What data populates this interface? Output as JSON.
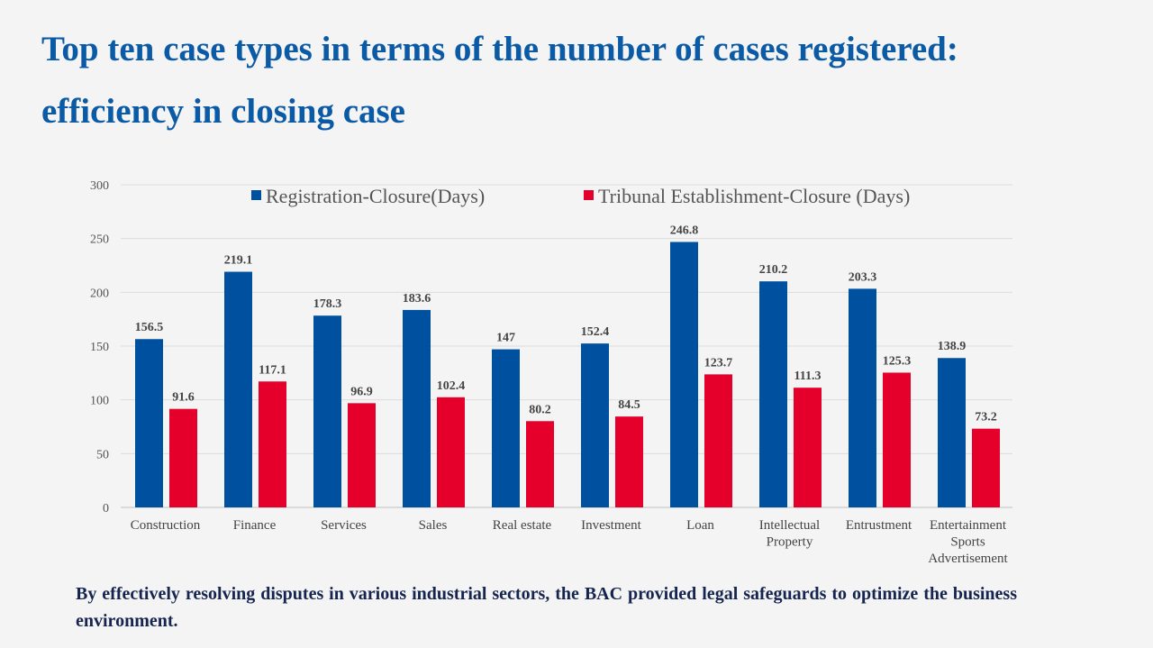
{
  "header": {
    "title_line1": "Top ten case types in terms of the number of cases registered:",
    "title_line2": "efficiency in closing case"
  },
  "footer": {
    "text": "By effectively resolving disputes in various industrial sectors, the BAC provided legal safeguards to optimize the business environment."
  },
  "chart_data": {
    "type": "bar",
    "title": "",
    "xlabel": "",
    "ylabel": "",
    "ylim": [
      0,
      300
    ],
    "yticks": [
      0,
      50,
      100,
      150,
      200,
      250,
      300
    ],
    "grid": true,
    "legend_position": "top",
    "categories": [
      [
        "Construction"
      ],
      [
        "Finance"
      ],
      [
        "Services"
      ],
      [
        "Sales"
      ],
      [
        "Real estate"
      ],
      [
        "Investment"
      ],
      [
        "Loan"
      ],
      [
        "Intellectual",
        "Property"
      ],
      [
        "Entrustment"
      ],
      [
        "Entertainment",
        "Sports",
        "Advertisement"
      ]
    ],
    "series": [
      {
        "name": "Registration-Closure(Days)",
        "color": "#0050a0",
        "values": [
          156.5,
          219.1,
          178.3,
          183.6,
          147,
          152.4,
          246.8,
          210.2,
          203.3,
          138.9
        ]
      },
      {
        "name": "Tribunal Establishment-Closure (Days)",
        "color": "#e4002b",
        "values": [
          91.6,
          117.1,
          96.9,
          102.4,
          80.2,
          84.5,
          123.7,
          111.3,
          125.3,
          73.2
        ]
      }
    ]
  }
}
